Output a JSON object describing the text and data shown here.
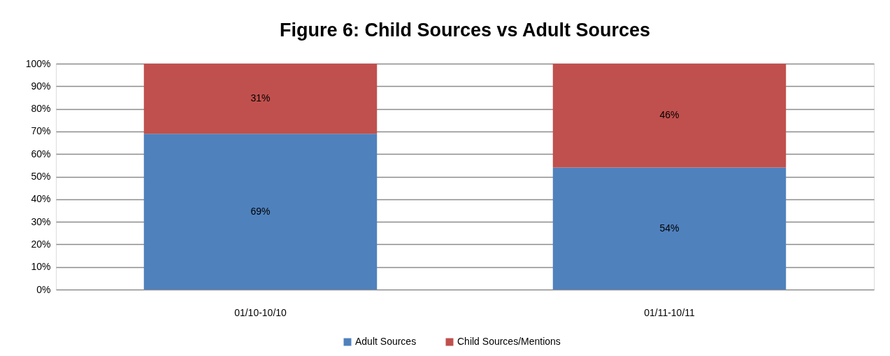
{
  "chart_data": {
    "type": "bar",
    "title": "Figure 6: Child Sources vs Adult Sources",
    "categories": [
      "01/10-10/10",
      "01/11-10/11"
    ],
    "stacked": true,
    "series": [
      {
        "name": "Adult Sources",
        "color": "#4f81bd",
        "values": [
          69,
          54
        ],
        "value_labels": [
          "69%",
          "54%"
        ]
      },
      {
        "name": "Child Sources/Mentions",
        "color": "#c0504d",
        "values": [
          31,
          46
        ],
        "value_labels": [
          "31%",
          "46%"
        ]
      }
    ],
    "ylim": [
      0,
      100
    ],
    "yticks": [
      {
        "value": 0,
        "label": "0%"
      },
      {
        "value": 10,
        "label": "10%"
      },
      {
        "value": 20,
        "label": "20%"
      },
      {
        "value": 30,
        "label": "30%"
      },
      {
        "value": 40,
        "label": "40%"
      },
      {
        "value": 50,
        "label": "50%"
      },
      {
        "value": 60,
        "label": "60%"
      },
      {
        "value": 70,
        "label": "70%"
      },
      {
        "value": 80,
        "label": "80%"
      },
      {
        "value": 90,
        "label": "90%"
      },
      {
        "value": 100,
        "label": "100%"
      }
    ],
    "grid": "y",
    "legend": "bottom"
  }
}
